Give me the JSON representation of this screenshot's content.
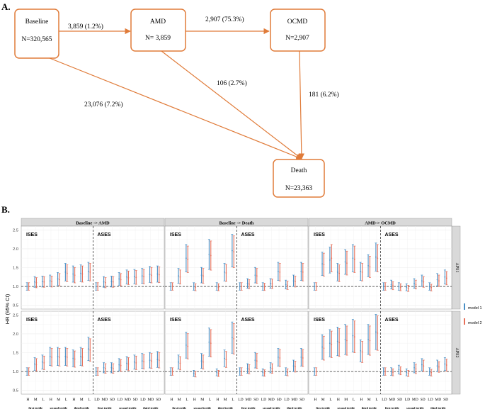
{
  "panel_a": {
    "label": "A.",
    "nodes": [
      {
        "id": "baseline",
        "name": "Baseline",
        "count": "N=320,565"
      },
      {
        "id": "amd",
        "name": "AMD",
        "count": "N= 3,859"
      },
      {
        "id": "ocmd",
        "name": "OCMD",
        "count": "N=2,907"
      },
      {
        "id": "death",
        "name": "Death",
        "count": "N=23,363"
      }
    ],
    "edges": [
      {
        "from": "baseline",
        "to": "amd",
        "label": "3,859 (1.2%)"
      },
      {
        "from": "amd",
        "to": "ocmd",
        "label": "2,907 (75.3%)"
      },
      {
        "from": "baseline",
        "to": "death",
        "label": "23,076 (7.2%)"
      },
      {
        "from": "amd",
        "to": "death",
        "label": "106 (2.7%)"
      },
      {
        "from": "ocmd",
        "to": "death",
        "label": "181 (6.2%)"
      }
    ],
    "colors": {
      "accent": "#e07b39"
    }
  },
  "panel_b": {
    "label": "B.",
    "y_axis_label": "HR (95% CI)",
    "legend": [
      {
        "name": "model 1",
        "color": "#4a90c6"
      },
      {
        "name": "model 2",
        "color": "#e8705a"
      }
    ],
    "colors": {
      "strip": "#d9d9d9",
      "panel_bg": "#ffffff",
      "grid": "#e6e6e6"
    }
  },
  "chart_data": {
    "type": "errorbar",
    "y_ticks": [
      "0.5",
      "1.0",
      "1.5",
      "2.0",
      "2.5"
    ],
    "ylim": [
      0.4,
      2.6
    ],
    "reference_line": 1.0,
    "columns": [
      "Baseline -> AMD",
      "Baseline -> Death",
      "AMD-> OCMD"
    ],
    "rows": [
      "APS1",
      "APS2"
    ],
    "x_labels": {
      "ises": [
        "H",
        "M",
        "L",
        "H",
        "M",
        "L",
        "H",
        "M",
        "L"
      ],
      "ases": [
        "LD",
        "MD",
        "SD",
        "LD",
        "MD",
        "SD",
        "LD",
        "MD",
        "SD"
      ]
    },
    "tertiles": [
      "first tertile",
      "second tertile",
      "third tertile"
    ],
    "sub_panels": [
      "ISES",
      "ASES"
    ],
    "series": [
      "model 1",
      "model 2"
    ],
    "facets": [
      {
        "column": "Baseline -> AMD",
        "row": "APS1",
        "ises": [
          [
            1.0,
            1.0
          ],
          [
            1.12,
            1.1
          ],
          [
            1.13,
            1.12
          ],
          [
            1.15,
            1.13
          ],
          [
            1.2,
            1.18
          ],
          [
            1.38,
            1.35
          ],
          [
            1.33,
            1.3
          ],
          [
            1.35,
            1.33
          ],
          [
            1.4,
            1.38
          ]
        ],
        "ases": [
          [
            1.0,
            1.0
          ],
          [
            1.12,
            1.1
          ],
          [
            1.13,
            1.12
          ],
          [
            1.2,
            1.18
          ],
          [
            1.25,
            1.23
          ],
          [
            1.26,
            1.24
          ],
          [
            1.28,
            1.26
          ],
          [
            1.32,
            1.3
          ],
          [
            1.33,
            1.31
          ]
        ]
      },
      {
        "column": "Baseline -> Death",
        "row": "APS1",
        "ises": [
          [
            1.0,
            1.0
          ],
          [
            1.28,
            1.25
          ],
          [
            1.75,
            1.72
          ],
          [
            1.0,
            0.98
          ],
          [
            1.3,
            1.28
          ],
          [
            1.85,
            1.82
          ],
          [
            1.0,
            0.98
          ],
          [
            1.38,
            1.36
          ],
          [
            1.95,
            1.92
          ]
        ],
        "ases": [
          [
            1.0,
            1.0
          ],
          [
            1.08,
            1.06
          ],
          [
            1.3,
            1.28
          ],
          [
            1.0,
            0.99
          ],
          [
            1.08,
            1.07
          ],
          [
            1.4,
            1.38
          ],
          [
            1.05,
            1.03
          ],
          [
            1.15,
            1.13
          ],
          [
            1.4,
            1.38
          ]
        ]
      },
      {
        "column": "AMD-> OCMD",
        "row": "APS1",
        "ises": [
          [
            1.0,
            1.0
          ],
          [
            1.6,
            1.58
          ],
          [
            1.7,
            1.75
          ],
          [
            1.38,
            1.35
          ],
          [
            1.65,
            1.62
          ],
          [
            1.75,
            1.72
          ],
          [
            1.4,
            1.38
          ],
          [
            1.55,
            1.52
          ],
          [
            1.78,
            1.75
          ]
        ],
        "ases": [
          [
            1.0,
            1.0
          ],
          [
            1.05,
            1.02
          ],
          [
            1.0,
            0.98
          ],
          [
            0.98,
            0.95
          ],
          [
            1.08,
            1.05
          ],
          [
            1.15,
            1.12
          ],
          [
            1.0,
            0.97
          ],
          [
            1.18,
            1.15
          ],
          [
            1.25,
            1.22
          ]
        ]
      },
      {
        "column": "Baseline -> AMD",
        "row": "APS2",
        "ises": [
          [
            1.0,
            1.0
          ],
          [
            1.2,
            1.18
          ],
          [
            1.25,
            1.23
          ],
          [
            1.4,
            1.38
          ],
          [
            1.4,
            1.38
          ],
          [
            1.4,
            1.38
          ],
          [
            1.35,
            1.33
          ],
          [
            1.4,
            1.38
          ],
          [
            1.6,
            1.57
          ]
        ],
        "ases": [
          [
            1.0,
            1.0
          ],
          [
            1.1,
            1.08
          ],
          [
            1.1,
            1.08
          ],
          [
            1.18,
            1.16
          ],
          [
            1.22,
            1.2
          ],
          [
            1.25,
            1.23
          ],
          [
            1.28,
            1.26
          ],
          [
            1.3,
            1.28
          ],
          [
            1.32,
            1.3
          ]
        ]
      },
      {
        "column": "Baseline -> Death",
        "row": "APS2",
        "ises": [
          [
            1.0,
            1.0
          ],
          [
            1.25,
            1.22
          ],
          [
            1.7,
            1.67
          ],
          [
            0.95,
            0.93
          ],
          [
            1.28,
            1.25
          ],
          [
            1.78,
            1.75
          ],
          [
            0.98,
            0.95
          ],
          [
            1.35,
            1.32
          ],
          [
            1.9,
            1.87
          ]
        ],
        "ases": [
          [
            1.0,
            1.0
          ],
          [
            1.08,
            1.06
          ],
          [
            1.3,
            1.28
          ],
          [
            0.98,
            0.96
          ],
          [
            1.1,
            1.08
          ],
          [
            1.38,
            1.36
          ],
          [
            1.0,
            0.98
          ],
          [
            1.15,
            1.13
          ],
          [
            1.38,
            1.36
          ]
        ]
      },
      {
        "column": "AMD-> OCMD",
        "row": "APS2",
        "ises": [
          [
            1.0,
            1.0
          ],
          [
            1.65,
            1.62
          ],
          [
            1.75,
            1.72
          ],
          [
            1.8,
            1.77
          ],
          [
            1.85,
            1.82
          ],
          [
            1.95,
            1.92
          ],
          [
            1.55,
            1.52
          ],
          [
            1.85,
            1.82
          ],
          [
            2.05,
            2.02
          ]
        ],
        "ases": [
          [
            1.0,
            1.0
          ],
          [
            1.0,
            0.98
          ],
          [
            1.05,
            1.02
          ],
          [
            0.98,
            0.95
          ],
          [
            1.1,
            1.07
          ],
          [
            1.18,
            1.15
          ],
          [
            1.0,
            0.97
          ],
          [
            1.15,
            1.12
          ],
          [
            1.2,
            1.17
          ]
        ]
      }
    ]
  }
}
